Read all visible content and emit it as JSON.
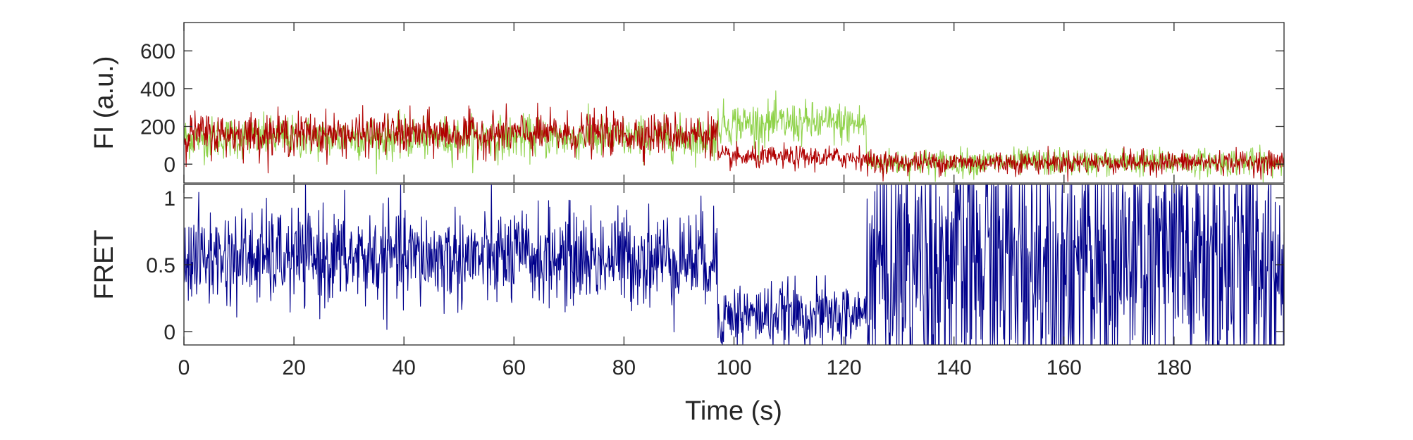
{
  "chart_data": [
    {
      "type": "line",
      "ylabel": "FI (a.u.)",
      "xlim": [
        0,
        200
      ],
      "ylim": [
        -100,
        750
      ],
      "yticks": [
        0,
        200,
        400,
        600
      ],
      "grid": false,
      "series": [
        {
          "color": "#8fd24a",
          "segments": [
            {
              "t0": 0,
              "t1": 97,
              "mean": 140,
              "sd": 55
            },
            {
              "t0": 97,
              "t1": 124,
              "mean": 215,
              "sd": 55
            },
            {
              "t0": 124,
              "t1": 200,
              "mean": 10,
              "sd": 35
            }
          ]
        },
        {
          "color": "#b00000",
          "segments": [
            {
              "t0": 0,
              "t1": 97,
              "mean": 160,
              "sd": 55
            },
            {
              "t0": 97,
              "t1": 124,
              "mean": 35,
              "sd": 30
            },
            {
              "t0": 124,
              "t1": 200,
              "mean": 10,
              "sd": 30
            }
          ]
        }
      ]
    },
    {
      "type": "line",
      "xlabel": "Time (s)",
      "ylabel": "FRET",
      "xlim": [
        0,
        200
      ],
      "ylim": [
        -0.1,
        1.1
      ],
      "xticks": [
        0,
        20,
        40,
        60,
        80,
        100,
        120,
        140,
        160,
        180
      ],
      "yticks": [
        0,
        0.5,
        1
      ],
      "grid": false,
      "series": [
        {
          "color": "#00008b",
          "segments": [
            {
              "t0": 0,
              "t1": 97,
              "mean": 0.55,
              "sd": 0.18
            },
            {
              "t0": 97,
              "t1": 124,
              "mean": 0.12,
              "sd": 0.12
            },
            {
              "t0": 124,
              "t1": 200,
              "mean": 0.5,
              "sd": 0.55
            }
          ]
        }
      ]
    }
  ]
}
